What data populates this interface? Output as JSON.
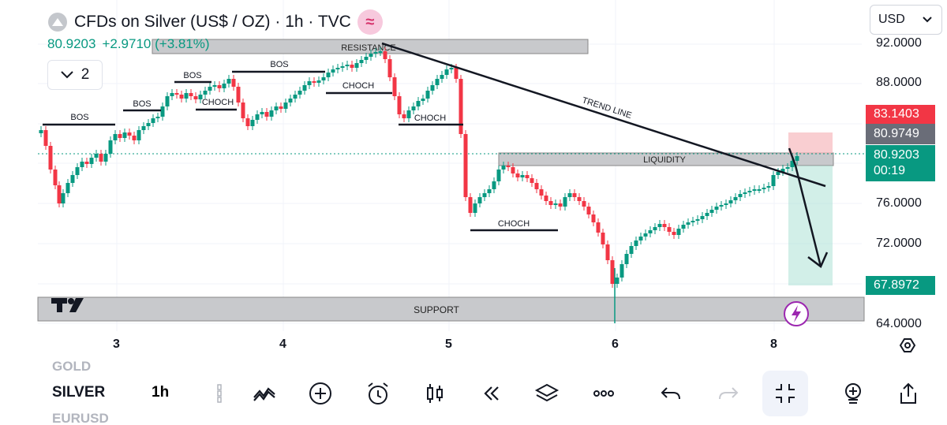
{
  "header": {
    "title": "CFDs on Silver (US$ / OZ) · 1h · TVC",
    "last_price": "80.9203",
    "change": "+2.9710 (+3.81%)",
    "indicator_count": "2",
    "currency": "USD"
  },
  "price_axis": {
    "labels": [
      "92.0000",
      "88.0000",
      "76.0000",
      "72.0000",
      "64.0000"
    ],
    "tag_high": "83.1403",
    "tag_mid": "80.9749",
    "tag_current": "80.9203",
    "tag_countdown": "00:19",
    "tag_low": "67.8972"
  },
  "time_axis": {
    "labels": [
      "3",
      "4",
      "5",
      "6",
      "8"
    ]
  },
  "annotations": {
    "resistance": "RESISTANCE",
    "support": "SUPPORT",
    "liquidity": "LIQUIDITY",
    "trend_line": "TREND LINE",
    "bos": "BOS",
    "choch": "CHOCH"
  },
  "watchlist": {
    "prev_symbol": "GOLD",
    "current_symbol": "SILVER",
    "next_symbol": "EURUSD",
    "interval": "1h"
  },
  "colors": {
    "up": "#089981",
    "down": "#f23645",
    "accent": "#131722"
  },
  "toolbar_icons": [
    "interval-drag-icon",
    "drawing-tools-icon",
    "add-icon",
    "alert-clock-icon",
    "candles-icon",
    "replay-icon",
    "layers-icon",
    "more-icon",
    "undo-icon",
    "redo-icon",
    "fullscreen-exit-icon",
    "object-tree-icon",
    "share-icon"
  ]
}
